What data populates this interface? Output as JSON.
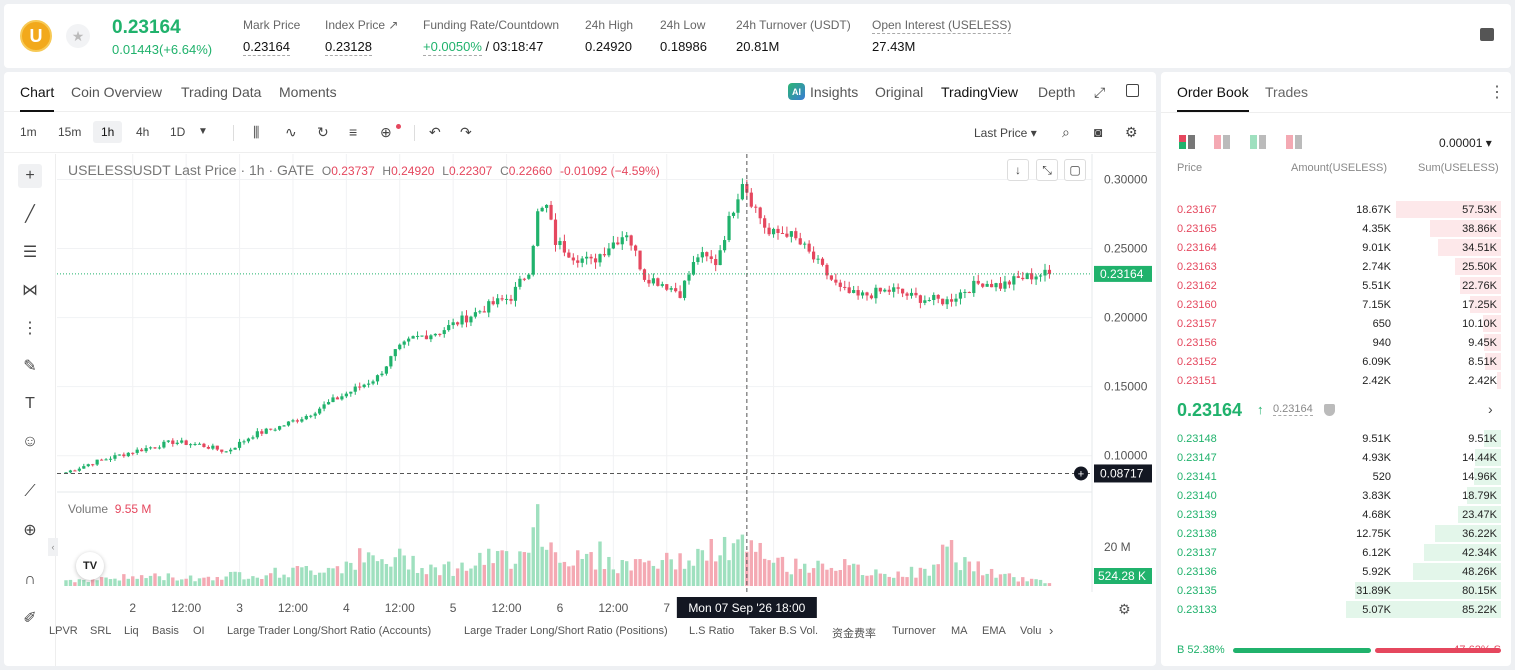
{
  "header": {
    "coin_letter": "U",
    "last_price": "0.23164",
    "change": "0.01443(+6.64%)",
    "stats": [
      {
        "label": "Mark Price",
        "value": "0.23164"
      },
      {
        "label": "Index Price ↗",
        "value": "0.23128"
      },
      {
        "label": "Funding Rate/Countdown",
        "value_green": "+0.0050%",
        "value": " / 03:18:47"
      },
      {
        "label": "24h High",
        "value": "0.24920"
      },
      {
        "label": "24h Low",
        "value": "0.18986"
      },
      {
        "label": "24h Turnover (USDT)",
        "value": "20.81M"
      },
      {
        "label": "Open Interest (USELESS)",
        "value": "27.43M"
      }
    ]
  },
  "chart_tabs": {
    "chart": "Chart",
    "coin_overview": "Coin Overview",
    "trading_data": "Trading Data",
    "moments": "Moments",
    "ai": "AI",
    "insights": "Insights",
    "original": "Original",
    "tradingview": "TradingView",
    "depth": "Depth"
  },
  "timeframes": [
    "1m",
    "15m",
    "1h",
    "4h",
    "1D"
  ],
  "active_timeframe": "1h",
  "price_type": "Last Price ▾",
  "legend": {
    "symbol": "USELESSUSDT Last Price · 1h · GATE",
    "o_label": "O",
    "o": "0.23737",
    "h_label": "H",
    "h": "0.24920",
    "l_label": "L",
    "l": "0.22307",
    "c_label": "C",
    "c": "0.22660",
    "chg": "-0.01092 (−4.59%)"
  },
  "volume_legend": {
    "label": "Volume",
    "value": "9.55 M"
  },
  "indicators": [
    "LPVR",
    "SRL",
    "Liq",
    "Basis",
    "OI",
    "Large Trader Long/Short Ratio (Accounts)",
    "Large Trader Long/Short Ratio (Positions)",
    "L.S Ratio",
    "Taker B.S Vol.",
    "资金费率",
    "Turnover",
    "MA",
    "EMA",
    "Volu"
  ],
  "chart_data": {
    "type": "candlestick",
    "y_ticks": [
      "0.30000",
      "0.25000",
      "0.20000",
      "0.15000",
      "0.10000"
    ],
    "y_tick_values": [
      0.3,
      0.25,
      0.2,
      0.15,
      0.1
    ],
    "ylim": [
      0.0752,
      0.317
    ],
    "x_ticks": [
      "2",
      "12:00",
      "3",
      "12:00",
      "4",
      "12:00",
      "5",
      "12:00",
      "6",
      "12:00",
      "7",
      "12:00"
    ],
    "x_tick_index": [
      15,
      27,
      39,
      51,
      63,
      75,
      87,
      99,
      111,
      123,
      135,
      159
    ],
    "last_price_label": "0.23164",
    "last_price": 0.23164,
    "crosshair_price_label": "0.08717",
    "crosshair_price": 0.08717,
    "crosshair_time_label": "Mon 07 Sep '26   18:00",
    "crosshair_index": 153,
    "volume_tick": "20 M",
    "volume_tick_value": 20,
    "volume_current_label": "524.28 K",
    "volume_max": 37,
    "anchors": [
      [
        0,
        0.088
      ],
      [
        6,
        0.095
      ],
      [
        15,
        0.103
      ],
      [
        24,
        0.11
      ],
      [
        30,
        0.108
      ],
      [
        36,
        0.103
      ],
      [
        42,
        0.115
      ],
      [
        48,
        0.121
      ],
      [
        54,
        0.129
      ],
      [
        60,
        0.14
      ],
      [
        66,
        0.15
      ],
      [
        70,
        0.157
      ],
      [
        74,
        0.175
      ],
      [
        78,
        0.185
      ],
      [
        84,
        0.19
      ],
      [
        90,
        0.2
      ],
      [
        96,
        0.21
      ],
      [
        100,
        0.215
      ],
      [
        104,
        0.235
      ],
      [
        106,
        0.275
      ],
      [
        108,
        0.28
      ],
      [
        110,
        0.255
      ],
      [
        114,
        0.245
      ],
      [
        118,
        0.24
      ],
      [
        122,
        0.252
      ],
      [
        126,
        0.262
      ],
      [
        130,
        0.23
      ],
      [
        134,
        0.225
      ],
      [
        138,
        0.218
      ],
      [
        142,
        0.245
      ],
      [
        146,
        0.24
      ],
      [
        150,
        0.28
      ],
      [
        152,
        0.3
      ],
      [
        154,
        0.285
      ],
      [
        158,
        0.26
      ],
      [
        162,
        0.262
      ],
      [
        166,
        0.25
      ],
      [
        170,
        0.235
      ],
      [
        174,
        0.22
      ],
      [
        178,
        0.215
      ],
      [
        182,
        0.218
      ],
      [
        186,
        0.22
      ],
      [
        190,
        0.215
      ],
      [
        194,
        0.213
      ],
      [
        198,
        0.212
      ],
      [
        202,
        0.22
      ],
      [
        206,
        0.226
      ],
      [
        210,
        0.223
      ],
      [
        214,
        0.228
      ],
      [
        218,
        0.231
      ],
      [
        221,
        0.2316
      ]
    ],
    "volume_anchors": [
      [
        0,
        3
      ],
      [
        10,
        4
      ],
      [
        20,
        5
      ],
      [
        30,
        4
      ],
      [
        40,
        6
      ],
      [
        50,
        7
      ],
      [
        60,
        10
      ],
      [
        66,
        14
      ],
      [
        70,
        12
      ],
      [
        76,
        14
      ],
      [
        82,
        10
      ],
      [
        88,
        9
      ],
      [
        94,
        13
      ],
      [
        100,
        15
      ],
      [
        104,
        25
      ],
      [
        106,
        36
      ],
      [
        108,
        22
      ],
      [
        112,
        16
      ],
      [
        116,
        13
      ],
      [
        120,
        16
      ],
      [
        124,
        10
      ],
      [
        130,
        13
      ],
      [
        136,
        12
      ],
      [
        142,
        15
      ],
      [
        148,
        19
      ],
      [
        152,
        20
      ],
      [
        156,
        16
      ],
      [
        160,
        12
      ],
      [
        164,
        10
      ],
      [
        170,
        13
      ],
      [
        176,
        9
      ],
      [
        182,
        6
      ],
      [
        188,
        7
      ],
      [
        194,
        7
      ],
      [
        198,
        19
      ],
      [
        202,
        13
      ],
      [
        206,
        8
      ],
      [
        210,
        5
      ],
      [
        214,
        4
      ],
      [
        221,
        2
      ]
    ]
  },
  "book_tabs": {
    "order_book": "Order Book",
    "trades": "Trades"
  },
  "precision": "0.00001 ▾",
  "columns": {
    "price": "Price",
    "amount": "Amount(USELESS)",
    "sum": "Sum(USELESS)"
  },
  "asks": [
    {
      "p": "0.23167",
      "a": "18.67K",
      "s": "57.53K"
    },
    {
      "p": "0.23165",
      "a": "4.35K",
      "s": "38.86K"
    },
    {
      "p": "0.23164",
      "a": "9.01K",
      "s": "34.51K"
    },
    {
      "p": "0.23163",
      "a": "2.74K",
      "s": "25.50K"
    },
    {
      "p": "0.23162",
      "a": "5.51K",
      "s": "22.76K"
    },
    {
      "p": "0.23160",
      "a": "7.15K",
      "s": "17.25K"
    },
    {
      "p": "0.23157",
      "a": "650",
      "s": "10.10K"
    },
    {
      "p": "0.23156",
      "a": "940",
      "s": "9.45K"
    },
    {
      "p": "0.23152",
      "a": "6.09K",
      "s": "8.51K"
    },
    {
      "p": "0.23151",
      "a": "2.42K",
      "s": "2.42K"
    }
  ],
  "ask_depth_fraction": [
    0.551,
    0.372,
    0.331,
    0.244,
    0.218,
    0.165,
    0.097,
    0.091,
    0.082,
    0.023
  ],
  "mid": {
    "price": "0.23164",
    "arrow": "↑",
    "mark": "0.23164",
    "chevron": "›"
  },
  "bids": [
    {
      "p": "0.23148",
      "a": "9.51K",
      "s": "9.51K"
    },
    {
      "p": "0.23147",
      "a": "4.93K",
      "s": "14.44K"
    },
    {
      "p": "0.23141",
      "a": "520",
      "s": "14.96K"
    },
    {
      "p": "0.23140",
      "a": "3.83K",
      "s": "18.79K"
    },
    {
      "p": "0.23139",
      "a": "4.68K",
      "s": "23.47K"
    },
    {
      "p": "0.23138",
      "a": "12.75K",
      "s": "36.22K"
    },
    {
      "p": "0.23137",
      "a": "6.12K",
      "s": "42.34K"
    },
    {
      "p": "0.23136",
      "a": "5.92K",
      "s": "48.26K"
    },
    {
      "p": "0.23135",
      "a": "31.89K",
      "s": "80.15K"
    },
    {
      "p": "0.23133",
      "a": "5.07K",
      "s": "85.22K"
    }
  ],
  "bid_depth_fraction": [
    0.091,
    0.139,
    0.144,
    0.18,
    0.225,
    0.348,
    0.406,
    0.463,
    0.769,
    0.818
  ],
  "ratio": {
    "buy_label": "B 52.38%",
    "sell_label": "47.62% S",
    "buy": 52.38,
    "sell": 47.62
  },
  "colors": {
    "up": "#20b26c",
    "down": "#e5475e",
    "up_vol": "#9fe0bf",
    "down_vol": "#f4a9b3"
  }
}
